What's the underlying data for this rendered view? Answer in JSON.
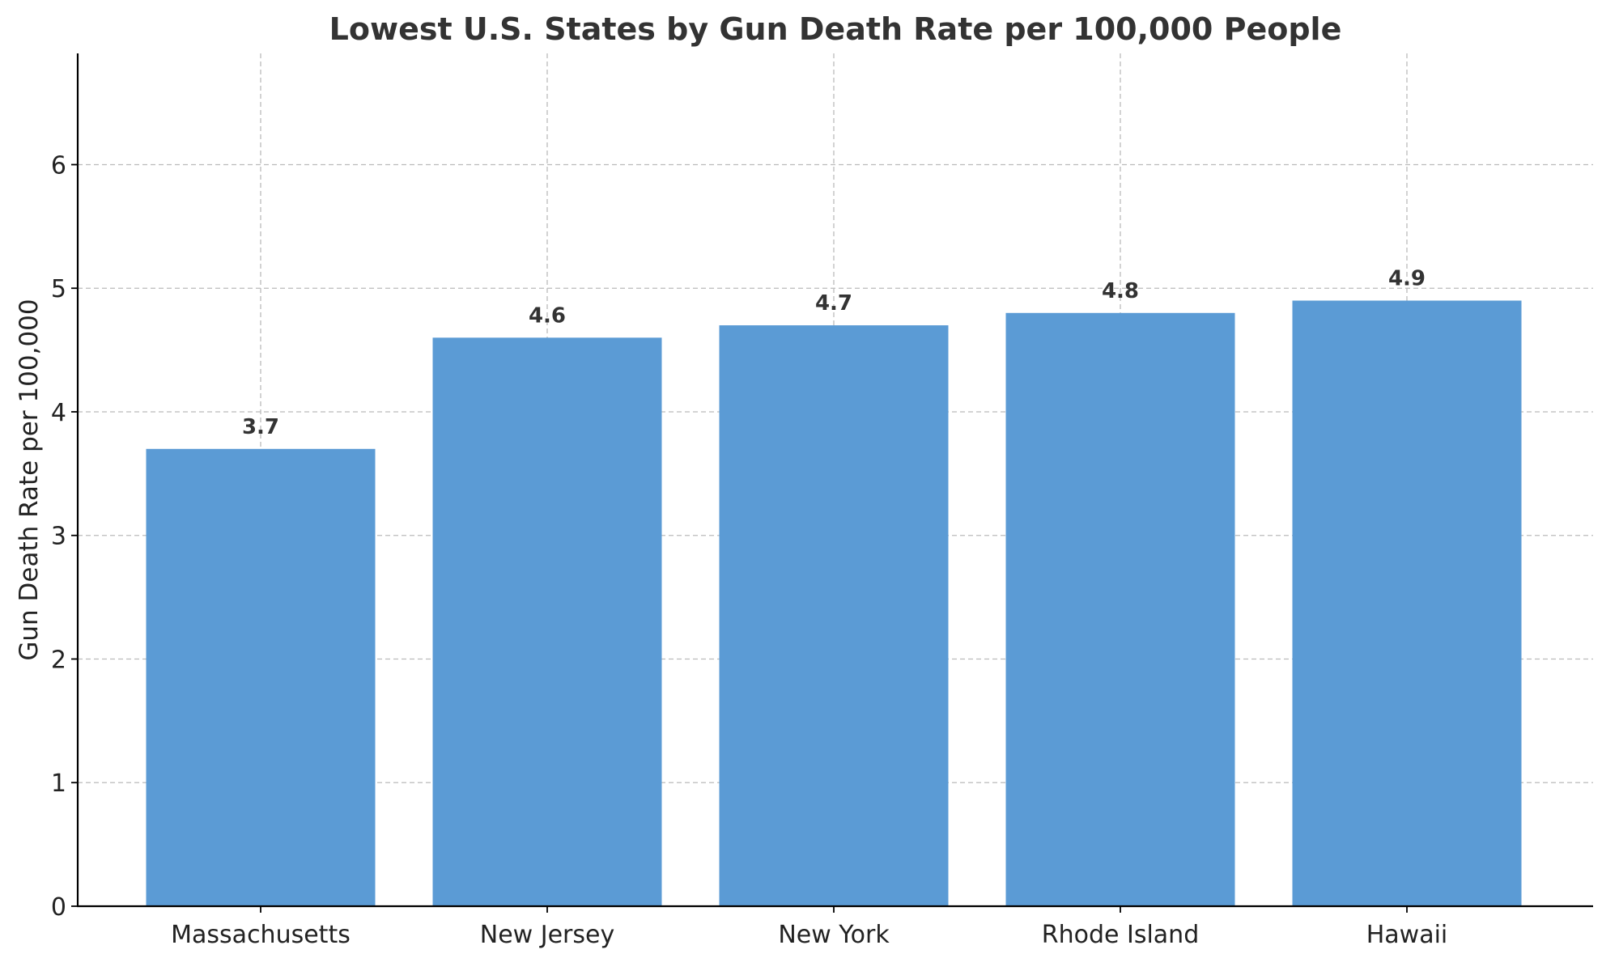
{
  "chart_data": {
    "type": "bar",
    "title": "Lowest U.S. States by Gun Death Rate per 100,000 People",
    "xlabel": "",
    "ylabel": "Gun Death Rate per 100,000",
    "categories": [
      "Massachusetts",
      "New Jersey",
      "New York",
      "Rhode Island",
      "Hawaii"
    ],
    "values": [
      3.7,
      4.6,
      4.7,
      4.8,
      4.9
    ],
    "value_labels": [
      "3.7",
      "4.6",
      "4.7",
      "4.8",
      "4.9"
    ],
    "y_ticks": [
      0,
      1,
      2,
      3,
      4,
      5,
      6
    ],
    "y_tick_labels": [
      "0",
      "1",
      "2",
      "3",
      "4",
      "5",
      "6"
    ],
    "ylim": [
      0,
      6.9
    ],
    "grid": true,
    "legend": "none",
    "bar_color": "#5b9bd5"
  }
}
